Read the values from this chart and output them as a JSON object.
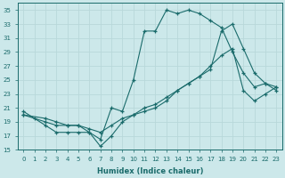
{
  "background_color": "#cce8ea",
  "grid_color": "#b8d8da",
  "line_color": "#1a6b6b",
  "xlabel": "Humidex (Indice chaleur)",
  "xlim": [
    -0.5,
    23.5
  ],
  "ylim": [
    15,
    36
  ],
  "yticks": [
    15,
    17,
    19,
    21,
    23,
    25,
    27,
    29,
    31,
    33,
    35
  ],
  "xticks": [
    0,
    1,
    2,
    3,
    4,
    5,
    6,
    7,
    8,
    9,
    10,
    11,
    12,
    13,
    14,
    15,
    16,
    17,
    18,
    19,
    20,
    21,
    22,
    23
  ],
  "line1_x": [
    0,
    1,
    2,
    3,
    4,
    5,
    6,
    7,
    8,
    9,
    10,
    11,
    12,
    13,
    14,
    15,
    16,
    17,
    18,
    19,
    20,
    21,
    22,
    23
  ],
  "line1_y": [
    20.5,
    19.5,
    18.5,
    17.5,
    17.5,
    17.5,
    17.5,
    16.5,
    21.0,
    20.5,
    25.0,
    32.0,
    32.0,
    35.0,
    34.5,
    35.0,
    34.5,
    33.5,
    32.5,
    29.0,
    26.0,
    24.0,
    24.5,
    23.5
  ],
  "line2_x": [
    0,
    2,
    3,
    4,
    5,
    6,
    7,
    8,
    9,
    10,
    11,
    12,
    13,
    14,
    15,
    16,
    17,
    18,
    19,
    20,
    21,
    22,
    23
  ],
  "line2_y": [
    20.0,
    19.0,
    18.5,
    18.5,
    18.5,
    18.0,
    17.5,
    18.5,
    19.5,
    20.0,
    21.0,
    21.5,
    22.5,
    23.5,
    24.5,
    25.5,
    27.0,
    28.5,
    29.5,
    23.5,
    22.0,
    23.0,
    24.0
  ],
  "line3_x": [
    0,
    2,
    3,
    4,
    5,
    6,
    7,
    8,
    9,
    10,
    11,
    12,
    13,
    14,
    15,
    16,
    17,
    18,
    19,
    20,
    21,
    22,
    23
  ],
  "line3_y": [
    20.0,
    19.5,
    19.0,
    18.5,
    18.5,
    17.5,
    15.5,
    17.0,
    19.0,
    20.0,
    20.5,
    21.0,
    22.0,
    23.5,
    24.5,
    25.5,
    26.5,
    32.0,
    33.0,
    29.5,
    26.0,
    24.5,
    24.0
  ]
}
